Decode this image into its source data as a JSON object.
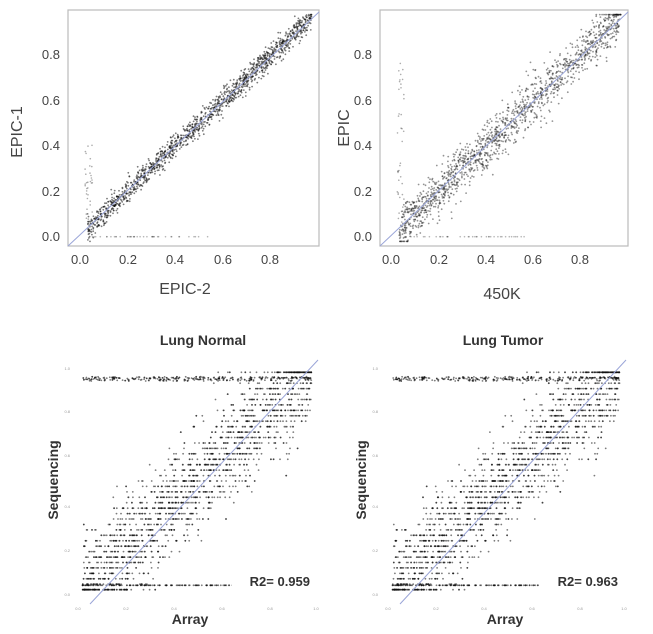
{
  "chart_data": [
    {
      "type": "scatter",
      "title": "",
      "xlabel": "EPIC-2",
      "ylabel": "EPIC-1",
      "xlim": [
        -0.05,
        0.98
      ],
      "ylim": [
        -0.04,
        0.98
      ],
      "xticks": [
        "0.0",
        "0.2",
        "0.4",
        "0.6",
        "0.8"
      ],
      "yticks": [
        "0.0",
        "0.2",
        "0.4",
        "0.6",
        "0.8"
      ],
      "frame": "gray",
      "points_color": "#111111",
      "diagonal_color": "#9aa5d8",
      "trend": {
        "x": [
          0.03,
          0.95
        ],
        "y": [
          0.03,
          0.95
        ],
        "spread": 0.025
      },
      "annotation": ""
    },
    {
      "type": "scatter",
      "title": "",
      "xlabel": "450K",
      "ylabel": "EPIC",
      "xlim": [
        -0.05,
        0.98
      ],
      "ylim": [
        -0.04,
        0.98
      ],
      "xticks": [
        "0.0",
        "0.2",
        "0.4",
        "0.6",
        "0.8"
      ],
      "yticks": [
        "0.0",
        "0.2",
        "0.4",
        "0.6",
        "0.8"
      ],
      "frame": "gray",
      "points_color": "#111111",
      "diagonal_color": "#9aa5d8",
      "trend": {
        "x": [
          0.03,
          0.95
        ],
        "y": [
          0.03,
          0.95
        ],
        "spread": 0.05
      },
      "annotation": ""
    },
    {
      "type": "scatter",
      "title": "Lung Normal",
      "xlabel": "Array",
      "ylabel": "Sequencing",
      "xlim": [
        -0.02,
        1.02
      ],
      "ylim": [
        -0.02,
        1.02
      ],
      "xticks": [
        "0.0",
        "0.2",
        "0.4",
        "0.6",
        "0.8",
        "1.0"
      ],
      "yticks": [
        "0.0",
        "0.2",
        "0.4",
        "0.6",
        "0.8",
        "1.0"
      ],
      "frame": "none",
      "points_color": "#111111",
      "diagonal_color": "#9aa5d8",
      "trend": {
        "x": [
          0.0,
          1.0
        ],
        "y": [
          0.0,
          1.0
        ],
        "spread": 0.12
      },
      "annotation": "R2= 0.959"
    },
    {
      "type": "scatter",
      "title": "Lung Tumor",
      "xlabel": "Array",
      "ylabel": "Sequencing",
      "xlim": [
        -0.02,
        1.02
      ],
      "ylim": [
        -0.02,
        1.02
      ],
      "xticks": [
        "0.0",
        "0.2",
        "0.4",
        "0.6",
        "0.8",
        "1.0"
      ],
      "yticks": [
        "0.0",
        "0.2",
        "0.4",
        "0.6",
        "0.8",
        "1.0"
      ],
      "frame": "none",
      "points_color": "#111111",
      "diagonal_color": "#9aa5d8",
      "trend": {
        "x": [
          0.0,
          1.0
        ],
        "y": [
          0.0,
          1.0
        ],
        "spread": 0.12
      },
      "annotation": "R2= 0.963"
    }
  ]
}
